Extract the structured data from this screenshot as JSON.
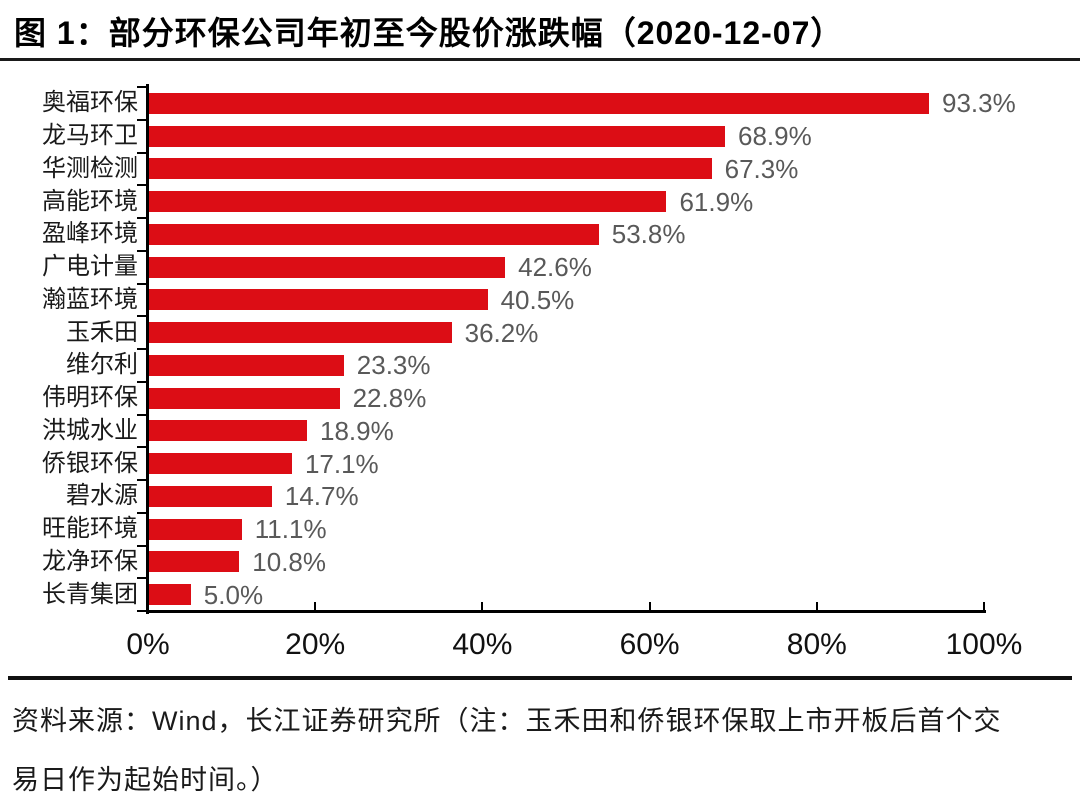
{
  "figure": {
    "title": "图 1：部分环保公司年初至今股价涨跌幅（2020-12-07）",
    "source_note": "资料来源：Wind，长江证券研究所（注：玉禾田和侨银环保取上市开板后首个交易日作为起始时间。）"
  },
  "chart_data": {
    "type": "bar",
    "orientation": "horizontal",
    "title": "部分环保公司年初至今股价涨跌幅（2020-12-07）",
    "categories": [
      "奥福环保",
      "龙马环卫",
      "华测检测",
      "高能环境",
      "盈峰环境",
      "广电计量",
      "瀚蓝环境",
      "玉禾田",
      "维尔利",
      "伟明环保",
      "洪城水业",
      "侨银环保",
      "碧水源",
      "旺能环境",
      "龙净环保",
      "长青集团"
    ],
    "values": [
      93.3,
      68.9,
      67.3,
      61.9,
      53.8,
      42.6,
      40.5,
      36.2,
      23.3,
      22.8,
      18.9,
      17.1,
      14.7,
      11.1,
      10.8,
      5.0
    ],
    "value_labels": [
      "93.3%",
      "68.9%",
      "67.3%",
      "61.9%",
      "53.8%",
      "42.6%",
      "40.5%",
      "36.2%",
      "23.3%",
      "22.8%",
      "18.9%",
      "17.1%",
      "14.7%",
      "11.1%",
      "10.8%",
      "5.0%"
    ],
    "xlabel": "",
    "ylabel": "",
    "xlim": [
      0,
      100
    ],
    "x_ticks": [
      {
        "value": 0,
        "label": "0%"
      },
      {
        "value": 20,
        "label": "20%"
      },
      {
        "value": 40,
        "label": "40%"
      },
      {
        "value": 60,
        "label": "60%"
      },
      {
        "value": 80,
        "label": "80%"
      },
      {
        "value": 100,
        "label": "100%"
      }
    ],
    "grid": false,
    "legend": false,
    "colors": {
      "bar": "#DC0D15",
      "value_label": "#595959",
      "category_label": "#1a1a1a",
      "axis": "#000000",
      "tick_label": "#111111"
    }
  }
}
